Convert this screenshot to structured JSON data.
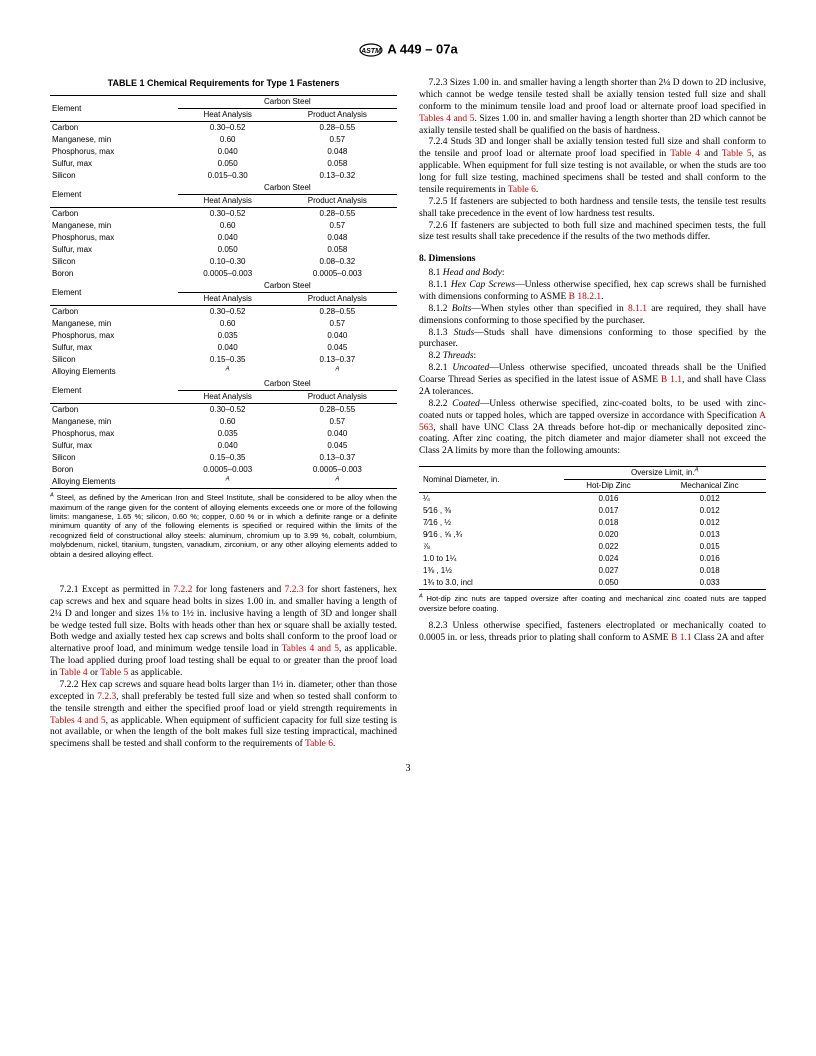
{
  "doc_id": "A 449 – 07a",
  "table1": {
    "title": "TABLE 1   Chemical Requirements for Type 1 Fasteners",
    "element_label": "Element",
    "group_label": "Carbon Steel",
    "heat_label": "Heat Analysis",
    "product_label": "Product Analysis",
    "groups": [
      {
        "rows": [
          {
            "e": "Carbon",
            "h": "0.30–0.52",
            "p": "0.28–0.55"
          },
          {
            "e": "Manganese, min",
            "h": "0.60",
            "p": "0.57"
          },
          {
            "e": "Phosphorus, max",
            "h": "0.040",
            "p": "0.048"
          },
          {
            "e": "Sulfur, max",
            "h": "0.050",
            "p": "0.058"
          },
          {
            "e": "Silicon",
            "h": "0.015–0.30",
            "p": "0.13–0.32"
          }
        ]
      },
      {
        "rows": [
          {
            "e": "Carbon",
            "h": "0.30–0.52",
            "p": "0.28–0.55"
          },
          {
            "e": "Manganese, min",
            "h": "0.60",
            "p": "0.57"
          },
          {
            "e": "Phosphorus, max",
            "h": "0.040",
            "p": "0.048"
          },
          {
            "e": "Sulfur, max",
            "h": "0.050",
            "p": "0.058"
          },
          {
            "e": "Silicon",
            "h": "0.10–0.30",
            "p": "0.08–0.32"
          },
          {
            "e": "Boron",
            "h": "0.0005–0.003",
            "p": "0.0005–0.003"
          }
        ]
      },
      {
        "rows": [
          {
            "e": "Carbon",
            "h": "0.30–0.52",
            "p": "0.28–0.55"
          },
          {
            "e": "Manganese, min",
            "h": "0.60",
            "p": "0.57"
          },
          {
            "e": "Phosphorus, max",
            "h": "0.035",
            "p": "0.040"
          },
          {
            "e": "Sulfur, max",
            "h": "0.040",
            "p": "0.045"
          },
          {
            "e": "Silicon",
            "h": "0.15–0.35",
            "p": "0.13–0.37"
          },
          {
            "e": "Alloying Elements",
            "h": "A",
            "p": "A",
            "sup": true
          }
        ]
      },
      {
        "rows": [
          {
            "e": "Carbon",
            "h": "0.30–0.52",
            "p": "0.28–0.55"
          },
          {
            "e": "Manganese, min",
            "h": "0.60",
            "p": "0.57"
          },
          {
            "e": "Phosphorus, max",
            "h": "0.035",
            "p": "0.040"
          },
          {
            "e": "Sulfur, max",
            "h": "0.040",
            "p": "0.045"
          },
          {
            "e": "Silicon",
            "h": "0.15–0.35",
            "p": "0.13–0.37"
          },
          {
            "e": "Boron",
            "h": "0.0005–0.003",
            "p": "0.0005–0.003"
          },
          {
            "e": "Alloying Elements",
            "h": "A",
            "p": "A",
            "sup": true
          }
        ]
      }
    ],
    "footnote": "Steel, as defined by the American Iron and Steel Institute, shall be considered to be alloy when the maximum of the range given for the content of alloying elements exceeds one or more of the following limits: manganese, 1.65 %; silicon, 0.60 %; copper, 0.60 % or in which a definite range or a definite minimum quantity of any of the following elements is specified or required within the limits of the recognized field of constructional alloy steels: aluminum, chromium up to 3.99 %, cobalt, columbium, molybdenum, nickel, titanium, tungsten, vanadium, zirconium, or any other alloying elements added to obtain a desired alloying effect."
  },
  "left_paras": {
    "p721a": "7.2.1  Except as permitted in ",
    "p721b": " for long fasteners and ",
    "p721c": " for short fasteners, hex cap screws and hex and square head bolts in sizes 1.00 in. and smaller having a length of 2¼ D and longer and sizes 1⅛ to 1½ in. inclusive having a length of 3D and longer shall be wedge tested full size. Bolts with heads other than hex or square shall be axially tested. Both wedge and axially tested hex cap screws and bolts shall conform to the proof load or alternative proof load, and minimum wedge tensile load in ",
    "p721d": ", as applicable. The load applied during proof load testing shall be equal to or greater than the proof load in ",
    "p721e": " or ",
    "p721f": " as applicable.",
    "p722a": "7.2.2  Hex cap screws and square head bolts larger than 1½ in. diameter, other than those excepted in ",
    "p722b": ", shall preferably be tested full size and when so tested shall conform to the tensile strength and either the specified proof load or yield strength requirements in ",
    "p722c": ", as applicable. When equipment of sufficient capacity for full size testing is not available, or when the length of the bolt makes full size testing impractical, machined specimens shall be tested and shall conform to the requirements of ",
    "p722d": ".",
    "link722": "7.2.2",
    "link723": "7.2.3",
    "link_t45": "Tables 4 and 5",
    "link_t4": "Table 4",
    "link_t5": "Table 5",
    "link_t6": "Table 6"
  },
  "right_paras": {
    "p723a": "7.2.3  Sizes 1.00 in. and smaller having a length shorter than 2¼ D down to 2D inclusive, which cannot be wedge tensile tested shall be axially tension tested full size and shall conform to the minimum tensile load and proof load or alternate proof load specified in ",
    "p723b": ". Sizes 1.00 in. and smaller having a length shorter than 2D which cannot be axially tensile tested shall be qualified on the basis of hardness.",
    "p724a": "7.2.4  Studs 3D and longer shall be axially tension tested full size and shall conform to the tensile and proof load or alternate proof load specified in ",
    "p724b": " and ",
    "p724c": ", as applicable. When equipment for full size testing is not available, or when the studs are too long for full size testing, machined specimens shall be tested and shall conform to the tensile requirements in ",
    "p724d": ".",
    "p725": "7.2.5  If fasteners are subjected to both hardness and tensile tests, the tensile test results shall take precedence in the event of low hardness test results.",
    "p726": "7.2.6 If fasteners are subjected to both full size and machined specimen tests, the full size test results shall take precedence if the results of the two methods differ.",
    "sec8": "8.  Dimensions",
    "p81": "8.1  Head and Body:",
    "p811a": "8.1.1  Hex Cap Screws—Unless otherwise specified, hex cap screws shall be furnished with dimensions conforming to ASME ",
    "p811b": ".",
    "link_b1821": "B 18.2.1",
    "p812a": "8.1.2  Bolts—When styles other than specified in ",
    "p812b": " are required, they shall have dimensions conforming to those specified by the purchaser.",
    "link_811": "8.1.1",
    "p813": "8.1.3  Studs—Studs shall have dimensions conforming to those specified by the purchaser.",
    "p82": "8.2  Threads:",
    "p821a": "8.2.1  Uncoated—Unless otherwise specified, uncoated threads shall be the Unified Coarse Thread Series as specified in the latest issue of ASME ",
    "p821b": ", and shall have Class 2A tolerances.",
    "link_b11": "B 1.1",
    "p822a": "8.2.2  Coated—Unless otherwise specified, zinc-coated bolts, to be used with zinc-coated nuts or tapped holes, which are tapped oversize in accordance with Specification ",
    "p822b": ", shall have UNC Class 2A threads before hot-dip or mechanically deposited zinc-coating. After zinc coating, the pitch diameter and major diameter shall not exceed the Class 2A limits by more than the following amounts:",
    "link_a563": "A 563",
    "p823a": "8.2.3  Unless otherwise specified, fasteners electroplated or mechanically coated to 0.0005 in. or less, threads prior to plating shall conform to ASME ",
    "p823b": " Class 2A and after",
    "link_t45": "Tables 4 and 5",
    "link_t4": "Table 4",
    "link_t5": "Table 5",
    "link_t6": "Table 6"
  },
  "oversize": {
    "nom_label": "Nominal Diameter, in.",
    "limit_label": "Oversize Limit, in.",
    "hot_label": "Hot-Dip Zinc",
    "mech_label": "Mechanical Zinc",
    "rows": [
      {
        "n": "¼",
        "h": "0.016",
        "m": "0.012"
      },
      {
        "n": "5⁄16 , ⅜",
        "h": "0.017",
        "m": "0.012"
      },
      {
        "n": "7⁄16 , ½",
        "h": "0.018",
        "m": "0.012"
      },
      {
        "n": "9⁄16 , ⅝ ,¾",
        "h": "0.020",
        "m": "0.013"
      },
      {
        "n": "⅞",
        "h": "0.022",
        "m": "0.015"
      },
      {
        "n": "1.0 to 1¼",
        "h": "0.024",
        "m": "0.016"
      },
      {
        "n": "1⅜ , 1½",
        "h": "0.027",
        "m": "0.018"
      },
      {
        "n": "1¾ to 3.0, incl",
        "h": "0.050",
        "m": "0.033"
      }
    ],
    "footnote": "Hot-dip zinc nuts are tapped oversize after coating and mechanical zinc coated nuts are tapped oversize before coating."
  },
  "page_number": "3"
}
